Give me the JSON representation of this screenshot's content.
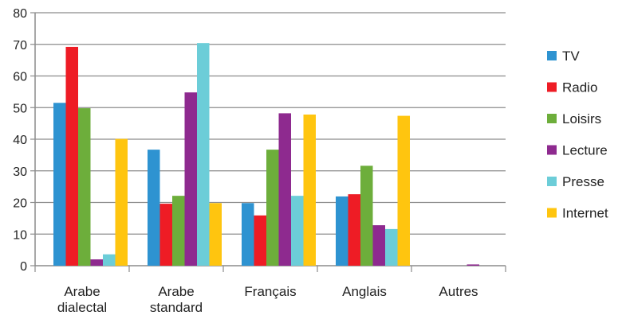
{
  "chart_data": {
    "type": "bar",
    "title": "",
    "xlabel": "",
    "ylabel": "",
    "ylim": [
      0,
      80
    ],
    "yticks": [
      0,
      10,
      20,
      30,
      40,
      50,
      60,
      70,
      80
    ],
    "grid": true,
    "legend_position": "right",
    "categories": [
      [
        "Arabe",
        "dialectal"
      ],
      [
        "Arabe",
        "standard"
      ],
      [
        "Français"
      ],
      [
        "Anglais"
      ],
      [
        "Autres"
      ]
    ],
    "series": [
      {
        "name": "TV",
        "color": "#2E93D1",
        "values": [
          51.5,
          36.7,
          19.8,
          21.9,
          0
        ]
      },
      {
        "name": "Radio",
        "color": "#EE1C25",
        "values": [
          69.2,
          19.6,
          15.9,
          22.6,
          0
        ]
      },
      {
        "name": "Loisirs",
        "color": "#6DAE3B",
        "values": [
          49.8,
          22.1,
          36.7,
          31.6,
          0
        ]
      },
      {
        "name": "Lecture",
        "color": "#8E2A8F",
        "values": [
          2.0,
          54.8,
          48.2,
          12.8,
          0.4
        ]
      },
      {
        "name": "Presse",
        "color": "#6CCDD8",
        "values": [
          3.6,
          70.4,
          22.1,
          11.6,
          0
        ]
      },
      {
        "name": "Internet",
        "color": "#FFC50F",
        "values": [
          40.1,
          19.8,
          47.8,
          47.4,
          0
        ]
      }
    ]
  }
}
